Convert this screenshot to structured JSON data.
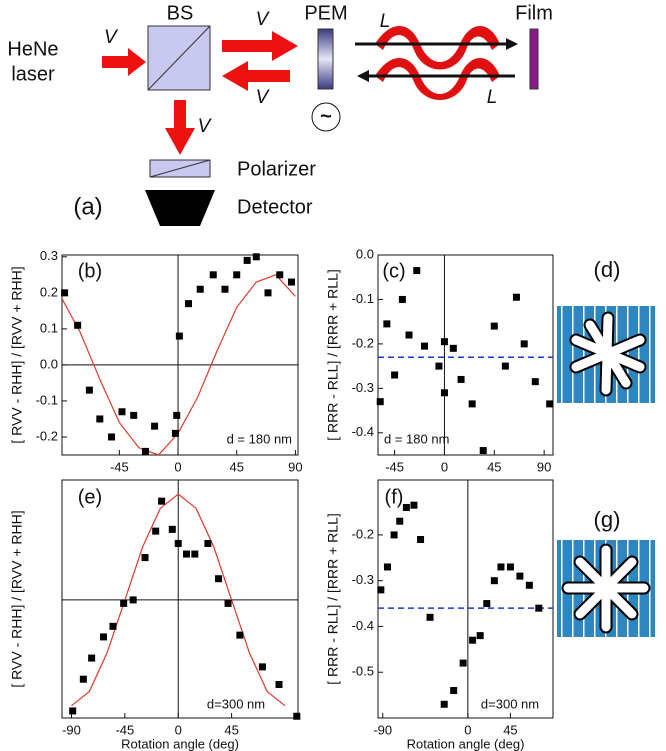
{
  "diagram": {
    "source": [
      "HeNe",
      "laser"
    ],
    "beam_splitter": "BS",
    "pol_in": "V",
    "pol_out": "V",
    "pol_back": "V",
    "pol_down": "V",
    "modulator": "PEM",
    "modulator_signal": "~",
    "circ_top": "L",
    "circ_bottom": "L",
    "sample": "Film",
    "polarizer": "Polarizer",
    "detector": "Detector",
    "panel": "(a)",
    "icon_panels": [
      "(d)",
      "(g)"
    ]
  },
  "chart_data": [
    {
      "type": "scatter",
      "panel": "(b)",
      "annotation": "d = 180 nm",
      "y_label": "[ RVV - RHH] / [RVV + RHH]",
      "xlim": [
        -89,
        92
      ],
      "ylim": [
        -0.25,
        0.305
      ],
      "xticks": [
        -45,
        0,
        45,
        90
      ],
      "yticks": [
        -0.2,
        -0.1,
        {
          "value": 0,
          "label": "0.0"
        },
        0.1,
        0.2,
        0.3
      ],
      "color": "#000000",
      "x": [
        -87,
        -77,
        -68,
        -60,
        -51,
        -43,
        -34,
        -25,
        -18,
        -2,
        -1,
        1,
        8,
        17,
        27,
        36,
        45,
        53,
        60,
        69,
        78,
        87
      ],
      "values": [
        0.2,
        0.11,
        -0.07,
        -0.15,
        -0.2,
        -0.13,
        -0.14,
        -0.24,
        -0.17,
        -0.19,
        -0.14,
        0.08,
        0.17,
        0.21,
        0.25,
        0.21,
        0.25,
        0.29,
        0.3,
        0.2,
        0.25,
        0.23
      ],
      "fit": {
        "color": "#e0392b",
        "x": [
          -90,
          -75,
          -60,
          -45,
          -30,
          -15,
          0,
          15,
          30,
          45,
          60,
          75,
          90
        ],
        "values": [
          0.19,
          0.09,
          -0.04,
          -0.16,
          -0.23,
          -0.25,
          -0.19,
          -0.09,
          0.04,
          0.16,
          0.23,
          0.25,
          0.19
        ]
      }
    },
    {
      "type": "scatter",
      "panel": "(c)",
      "annotation": "d = 180 nm",
      "y_label": "[ RRR - RLL] / [RRR + RLL]",
      "xlim": [
        -60,
        98
      ],
      "ylim": [
        -0.45,
        0.0
      ],
      "xticks": [
        -45,
        0,
        45,
        90
      ],
      "yticks": [
        -0.4,
        -0.3,
        -0.2,
        -0.1,
        {
          "value": 0,
          "label": "0.0"
        }
      ],
      "color": "#000000",
      "x": [
        -58,
        -52,
        -45,
        -38,
        -32,
        -25,
        -18,
        -5,
        0,
        0,
        8,
        15,
        25,
        35,
        45,
        55,
        65,
        72,
        82,
        95
      ],
      "values": [
        -0.33,
        -0.155,
        -0.27,
        -0.1,
        -0.18,
        -0.035,
        -0.205,
        -0.25,
        -0.195,
        -0.31,
        -0.21,
        -0.28,
        -0.335,
        -0.44,
        -0.16,
        -0.25,
        -0.095,
        -0.2,
        -0.285,
        -0.335
      ],
      "reference_line": {
        "value": -0.23,
        "color": "#2233cc"
      }
    },
    {
      "type": "scatter",
      "panel": "(e)",
      "annotation": "d=300 nm",
      "y_label": "[ RVV - RHH] / [RVV + RHH]",
      "x_label": "Rotation angle (deg)",
      "xlim": [
        -98,
        101
      ],
      "ylim": [
        -0.67,
        0.68
      ],
      "xticks": [
        -90,
        -45,
        0,
        45
      ],
      "yticks": [],
      "color": "#000000",
      "x": [
        -89,
        -80,
        -73,
        -63,
        -55,
        -46,
        -38,
        -28,
        -19,
        -14,
        -5,
        0,
        7,
        14,
        25,
        34,
        42,
        52,
        71,
        85,
        100
      ],
      "values": [
        -0.63,
        -0.45,
        -0.33,
        -0.21,
        -0.15,
        -0.02,
        0,
        0.24,
        0.39,
        0.56,
        0.4,
        0.32,
        0.26,
        0.26,
        0.32,
        0.12,
        -0.02,
        -0.2,
        -0.38,
        -0.48,
        -0.66
      ],
      "fit": {
        "color": "#e0392b",
        "x": [
          -90,
          -75,
          -60,
          -45,
          -30,
          -15,
          0,
          15,
          30,
          45,
          60,
          75,
          90
        ],
        "values": [
          -0.6,
          -0.52,
          -0.3,
          0,
          0.3,
          0.52,
          0.6,
          0.52,
          0.3,
          0,
          -0.3,
          -0.52,
          -0.6
        ]
      }
    },
    {
      "type": "scatter",
      "panel": "(f)",
      "annotation": "d=300 nm",
      "y_label": "[ RRR - RLL] / [RRR + RLL]",
      "x_label": "Rotation angle (deg)",
      "xlim": [
        -95,
        90
      ],
      "ylim": [
        -0.6,
        -0.08
      ],
      "xticks": [
        -90,
        0,
        45
      ],
      "yticks": [
        -0.5,
        -0.4,
        -0.3,
        -0.2
      ],
      "color": "#000000",
      "x": [
        -92,
        -85,
        -78,
        -72,
        -65,
        -57,
        -50,
        -40,
        -25,
        -15,
        -5,
        5,
        13,
        20,
        28,
        35,
        45,
        55,
        65,
        75
      ],
      "values": [
        -0.32,
        -0.27,
        -0.2,
        -0.17,
        -0.14,
        -0.135,
        -0.21,
        -0.38,
        -0.57,
        -0.54,
        -0.48,
        -0.43,
        -0.42,
        -0.35,
        -0.3,
        -0.27,
        -0.27,
        -0.29,
        -0.31,
        -0.36
      ],
      "reference_line": {
        "value": -0.36,
        "color": "#2233cc"
      }
    }
  ]
}
